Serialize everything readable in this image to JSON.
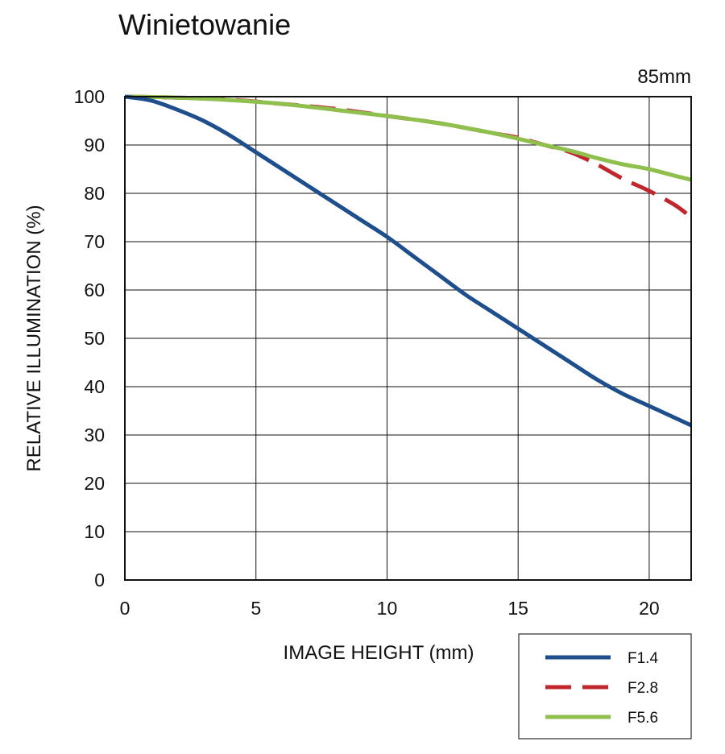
{
  "chart_data": {
    "type": "line",
    "title": "Winietowanie",
    "subtitle": "85mm",
    "xlabel": "IMAGE HEIGHT (mm)",
    "ylabel": "RELATIVE ILLUMINATION (%)",
    "xlim": [
      0,
      21.6
    ],
    "ylim": [
      0,
      100
    ],
    "xticks": [
      0,
      5,
      10,
      15,
      20
    ],
    "yticks": [
      0,
      10,
      20,
      30,
      40,
      50,
      60,
      70,
      80,
      90,
      100
    ],
    "grid": true,
    "legend_position": "bottom-right",
    "series": [
      {
        "name": "F1.4",
        "color": "#1f4e8c",
        "dash": "solid",
        "x": [
          0,
          1,
          2,
          3,
          4,
          5,
          6,
          7,
          8,
          9,
          10,
          11,
          12,
          13,
          14,
          15,
          16,
          17,
          18,
          19,
          20,
          21,
          21.6
        ],
        "y": [
          100,
          99.2,
          97.3,
          95,
          92,
          88.5,
          85,
          81.5,
          78,
          74.5,
          71,
          67,
          63,
          59,
          55.5,
          52,
          48.5,
          45,
          41.5,
          38.5,
          36,
          33.5,
          32
        ]
      },
      {
        "name": "F2.8",
        "color": "#c0272d",
        "dash": "dashed",
        "x": [
          0,
          2,
          4,
          6,
          8,
          10,
          12,
          14,
          15,
          16,
          17,
          18,
          19,
          20,
          21,
          21.6
        ],
        "y": [
          100,
          99.8,
          99.4,
          98.5,
          97.5,
          96,
          94.5,
          92.5,
          91.5,
          90,
          88.5,
          86,
          83,
          80.5,
          77.5,
          75
        ]
      },
      {
        "name": "F5.6",
        "color": "#8fbf4d",
        "dash": "solid",
        "x": [
          0,
          2,
          4,
          6,
          8,
          10,
          12,
          14,
          15,
          16,
          17,
          18,
          19,
          20,
          21,
          21.6
        ],
        "y": [
          100,
          99.8,
          99.3,
          98.5,
          97.3,
          96,
          94.5,
          92.5,
          91.3,
          90,
          88.8,
          87.3,
          86,
          85,
          83.6,
          82.8
        ]
      }
    ]
  }
}
